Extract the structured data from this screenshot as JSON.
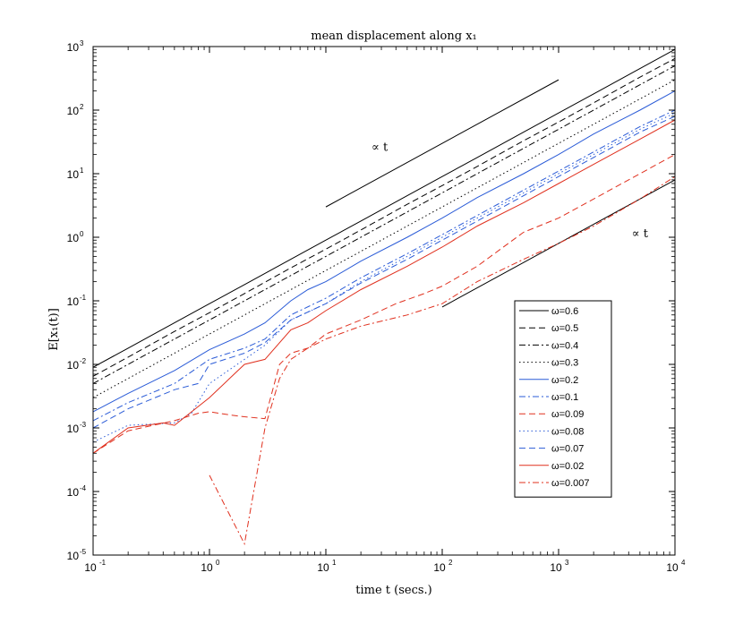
{
  "chart_data": {
    "type": "line",
    "title": "mean displacement along x₁",
    "xlabel": "time t (secs.)",
    "ylabel": "E[x₁(t)]",
    "xscale": "log",
    "yscale": "log",
    "xlim": [
      0.1,
      10000
    ],
    "ylim": [
      1e-05,
      1000
    ],
    "grid": false,
    "legend_position": "lower-right",
    "xtick_values": [
      0.1,
      1,
      10,
      100,
      1000,
      10000
    ],
    "xtick_labels": [
      {
        "base": "10",
        "exp": "-1"
      },
      {
        "base": "10",
        "exp": "0"
      },
      {
        "base": "10",
        "exp": "1"
      },
      {
        "base": "10",
        "exp": "2"
      },
      {
        "base": "10",
        "exp": "3"
      },
      {
        "base": "10",
        "exp": "4"
      }
    ],
    "ytick_values": [
      1e-05,
      0.0001,
      0.001,
      0.01,
      0.1,
      1,
      10,
      100,
      1000
    ],
    "ytick_labels": [
      {
        "base": "10",
        "exp": "-5"
      },
      {
        "base": "10",
        "exp": "-4"
      },
      {
        "base": "10",
        "exp": "-3"
      },
      {
        "base": "10",
        "exp": "-2"
      },
      {
        "base": "10",
        "exp": "-1"
      },
      {
        "base": "10",
        "exp": "0"
      },
      {
        "base": "10",
        "exp": "1"
      },
      {
        "base": "10",
        "exp": "2"
      },
      {
        "base": "10",
        "exp": "3"
      }
    ],
    "annotations": [
      {
        "text": "∝ t",
        "x": 29,
        "y": 23
      },
      {
        "text": "∝ t",
        "x": 5000,
        "y": 1.0
      }
    ],
    "reference_lines": [
      {
        "color": "#000000",
        "dash": "solid",
        "points": [
          [
            10,
            3
          ],
          [
            1000,
            300
          ]
        ]
      },
      {
        "color": "#000000",
        "dash": "solid",
        "points": [
          [
            100,
            0.08
          ],
          [
            10000,
            8
          ]
        ]
      }
    ],
    "series": [
      {
        "name": "ω=0.6",
        "color": "#000000",
        "dash": "solid",
        "points": [
          [
            0.1,
            0.009
          ],
          [
            0.2,
            0.018
          ],
          [
            0.5,
            0.045
          ],
          [
            1,
            0.09
          ],
          [
            2,
            0.18
          ],
          [
            5,
            0.45
          ],
          [
            10,
            0.9
          ],
          [
            20,
            1.8
          ],
          [
            50,
            4.5
          ],
          [
            100,
            9
          ],
          [
            200,
            18
          ],
          [
            500,
            45
          ],
          [
            1000,
            90
          ],
          [
            2000,
            180
          ],
          [
            5000,
            450
          ],
          [
            10000,
            900
          ]
        ]
      },
      {
        "name": "ω=0.5",
        "color": "#000000",
        "dash": "dashed",
        "points": [
          [
            0.1,
            0.0065
          ],
          [
            0.2,
            0.013
          ],
          [
            0.5,
            0.033
          ],
          [
            1,
            0.065
          ],
          [
            2,
            0.13
          ],
          [
            5,
            0.33
          ],
          [
            10,
            0.65
          ],
          [
            20,
            1.3
          ],
          [
            50,
            3.3
          ],
          [
            100,
            6.5
          ],
          [
            200,
            13
          ],
          [
            500,
            33
          ],
          [
            1000,
            65
          ],
          [
            2000,
            130
          ],
          [
            5000,
            330
          ],
          [
            10000,
            650
          ]
        ]
      },
      {
        "name": "ω=0.4",
        "color": "#000000",
        "dash": "dashdot",
        "points": [
          [
            0.1,
            0.005
          ],
          [
            0.2,
            0.01
          ],
          [
            0.5,
            0.025
          ],
          [
            1,
            0.05
          ],
          [
            2,
            0.1
          ],
          [
            5,
            0.25
          ],
          [
            10,
            0.5
          ],
          [
            20,
            1
          ],
          [
            50,
            2.5
          ],
          [
            100,
            5
          ],
          [
            200,
            10
          ],
          [
            500,
            25
          ],
          [
            1000,
            50
          ],
          [
            2000,
            100
          ],
          [
            5000,
            250
          ],
          [
            10000,
            500
          ]
        ]
      },
      {
        "name": "ω=0.3",
        "color": "#000000",
        "dash": "dotted",
        "points": [
          [
            0.1,
            0.003
          ],
          [
            0.2,
            0.006
          ],
          [
            0.5,
            0.015
          ],
          [
            1,
            0.03
          ],
          [
            2,
            0.06
          ],
          [
            5,
            0.15
          ],
          [
            10,
            0.3
          ],
          [
            20,
            0.6
          ],
          [
            50,
            1.5
          ],
          [
            100,
            3
          ],
          [
            200,
            6
          ],
          [
            500,
            15
          ],
          [
            1000,
            30
          ],
          [
            2000,
            60
          ],
          [
            5000,
            150
          ],
          [
            10000,
            300
          ]
        ]
      },
      {
        "name": "ω=0.2",
        "color": "#2a5bd7",
        "dash": "solid",
        "points": [
          [
            0.1,
            0.0018
          ],
          [
            0.2,
            0.0035
          ],
          [
            0.5,
            0.008
          ],
          [
            1,
            0.017
          ],
          [
            2,
            0.03
          ],
          [
            3,
            0.045
          ],
          [
            5,
            0.1
          ],
          [
            7,
            0.15
          ],
          [
            10,
            0.2
          ],
          [
            20,
            0.42
          ],
          [
            50,
            1
          ],
          [
            100,
            2
          ],
          [
            200,
            4.2
          ],
          [
            500,
            10
          ],
          [
            1000,
            20
          ],
          [
            2000,
            42
          ],
          [
            5000,
            100
          ],
          [
            10000,
            200
          ]
        ]
      },
      {
        "name": "ω=0.1",
        "color": "#2a5bd7",
        "dash": "dashdot",
        "points": [
          [
            0.1,
            0.0013
          ],
          [
            0.2,
            0.0025
          ],
          [
            0.5,
            0.005
          ],
          [
            1,
            0.012
          ],
          [
            2,
            0.018
          ],
          [
            3,
            0.025
          ],
          [
            5,
            0.06
          ],
          [
            10,
            0.11
          ],
          [
            20,
            0.23
          ],
          [
            50,
            0.55
          ],
          [
            100,
            1.1
          ],
          [
            200,
            2.2
          ],
          [
            500,
            5.5
          ],
          [
            1000,
            11
          ],
          [
            2000,
            22
          ],
          [
            5000,
            55
          ],
          [
            10000,
            100
          ]
        ]
      },
      {
        "name": "ω=0.09",
        "color": "#e0301e",
        "dash": "dashed",
        "points": [
          [
            0.1,
            0.0004
          ],
          [
            0.2,
            0.0009
          ],
          [
            0.5,
            0.0013
          ],
          [
            0.8,
            0.0017
          ],
          [
            1,
            0.0018
          ],
          [
            1.5,
            0.0016
          ],
          [
            2,
            0.0015
          ],
          [
            3,
            0.0014
          ],
          [
            4,
            0.01
          ],
          [
            5,
            0.015
          ],
          [
            7,
            0.018
          ],
          [
            10,
            0.03
          ],
          [
            20,
            0.05
          ],
          [
            40,
            0.09
          ],
          [
            70,
            0.13
          ],
          [
            100,
            0.17
          ],
          [
            200,
            0.35
          ],
          [
            500,
            1.2
          ],
          [
            1000,
            2
          ],
          [
            2000,
            4
          ],
          [
            5000,
            10
          ],
          [
            10000,
            20
          ]
        ]
      },
      {
        "name": "ω=0.08",
        "color": "#2a5bd7",
        "dash": "dotted",
        "points": [
          [
            0.1,
            0.0006
          ],
          [
            0.2,
            0.0011
          ],
          [
            0.5,
            0.0012
          ],
          [
            0.7,
            0.0017
          ],
          [
            1,
            0.005
          ],
          [
            2,
            0.012
          ],
          [
            3,
            0.02
          ],
          [
            5,
            0.05
          ],
          [
            10,
            0.09
          ],
          [
            20,
            0.2
          ],
          [
            50,
            0.5
          ],
          [
            100,
            1
          ],
          [
            200,
            2
          ],
          [
            500,
            5
          ],
          [
            1000,
            10
          ],
          [
            2000,
            20
          ],
          [
            5000,
            50
          ],
          [
            10000,
            90
          ]
        ]
      },
      {
        "name": "ω=0.07",
        "color": "#2a5bd7",
        "dash": "dashed",
        "points": [
          [
            0.1,
            0.001
          ],
          [
            0.2,
            0.002
          ],
          [
            0.5,
            0.004
          ],
          [
            0.8,
            0.005
          ],
          [
            1,
            0.01
          ],
          [
            2,
            0.015
          ],
          [
            3,
            0.022
          ],
          [
            5,
            0.05
          ],
          [
            10,
            0.09
          ],
          [
            20,
            0.19
          ],
          [
            50,
            0.45
          ],
          [
            100,
            0.9
          ],
          [
            200,
            1.8
          ],
          [
            500,
            4.5
          ],
          [
            1000,
            9
          ],
          [
            2000,
            18
          ],
          [
            5000,
            45
          ],
          [
            10000,
            80
          ]
        ]
      },
      {
        "name": "ω=0.02",
        "color": "#e0301e",
        "dash": "solid",
        "points": [
          [
            0.1,
            0.0004
          ],
          [
            0.2,
            0.001
          ],
          [
            0.4,
            0.0012
          ],
          [
            0.5,
            0.0011
          ],
          [
            1,
            0.003
          ],
          [
            2,
            0.01
          ],
          [
            3,
            0.012
          ],
          [
            5,
            0.035
          ],
          [
            7,
            0.045
          ],
          [
            10,
            0.07
          ],
          [
            20,
            0.15
          ],
          [
            50,
            0.35
          ],
          [
            100,
            0.7
          ],
          [
            200,
            1.5
          ],
          [
            500,
            3.5
          ],
          [
            1000,
            7
          ],
          [
            2000,
            14
          ],
          [
            5000,
            35
          ],
          [
            10000,
            70
          ]
        ]
      },
      {
        "name": "ω=0.007",
        "color": "#e0301e",
        "dash": "dashdot",
        "points": [
          [
            1,
            0.00018
          ],
          [
            2,
            1.5e-05
          ],
          [
            3,
            0.001
          ],
          [
            4,
            0.006
          ],
          [
            5,
            0.012
          ],
          [
            7,
            0.018
          ],
          [
            10,
            0.025
          ],
          [
            20,
            0.04
          ],
          [
            50,
            0.06
          ],
          [
            100,
            0.09
          ],
          [
            200,
            0.2
          ],
          [
            500,
            0.45
          ],
          [
            1000,
            0.8
          ],
          [
            2000,
            1.5
          ],
          [
            5000,
            4
          ],
          [
            10000,
            9
          ]
        ]
      }
    ]
  }
}
